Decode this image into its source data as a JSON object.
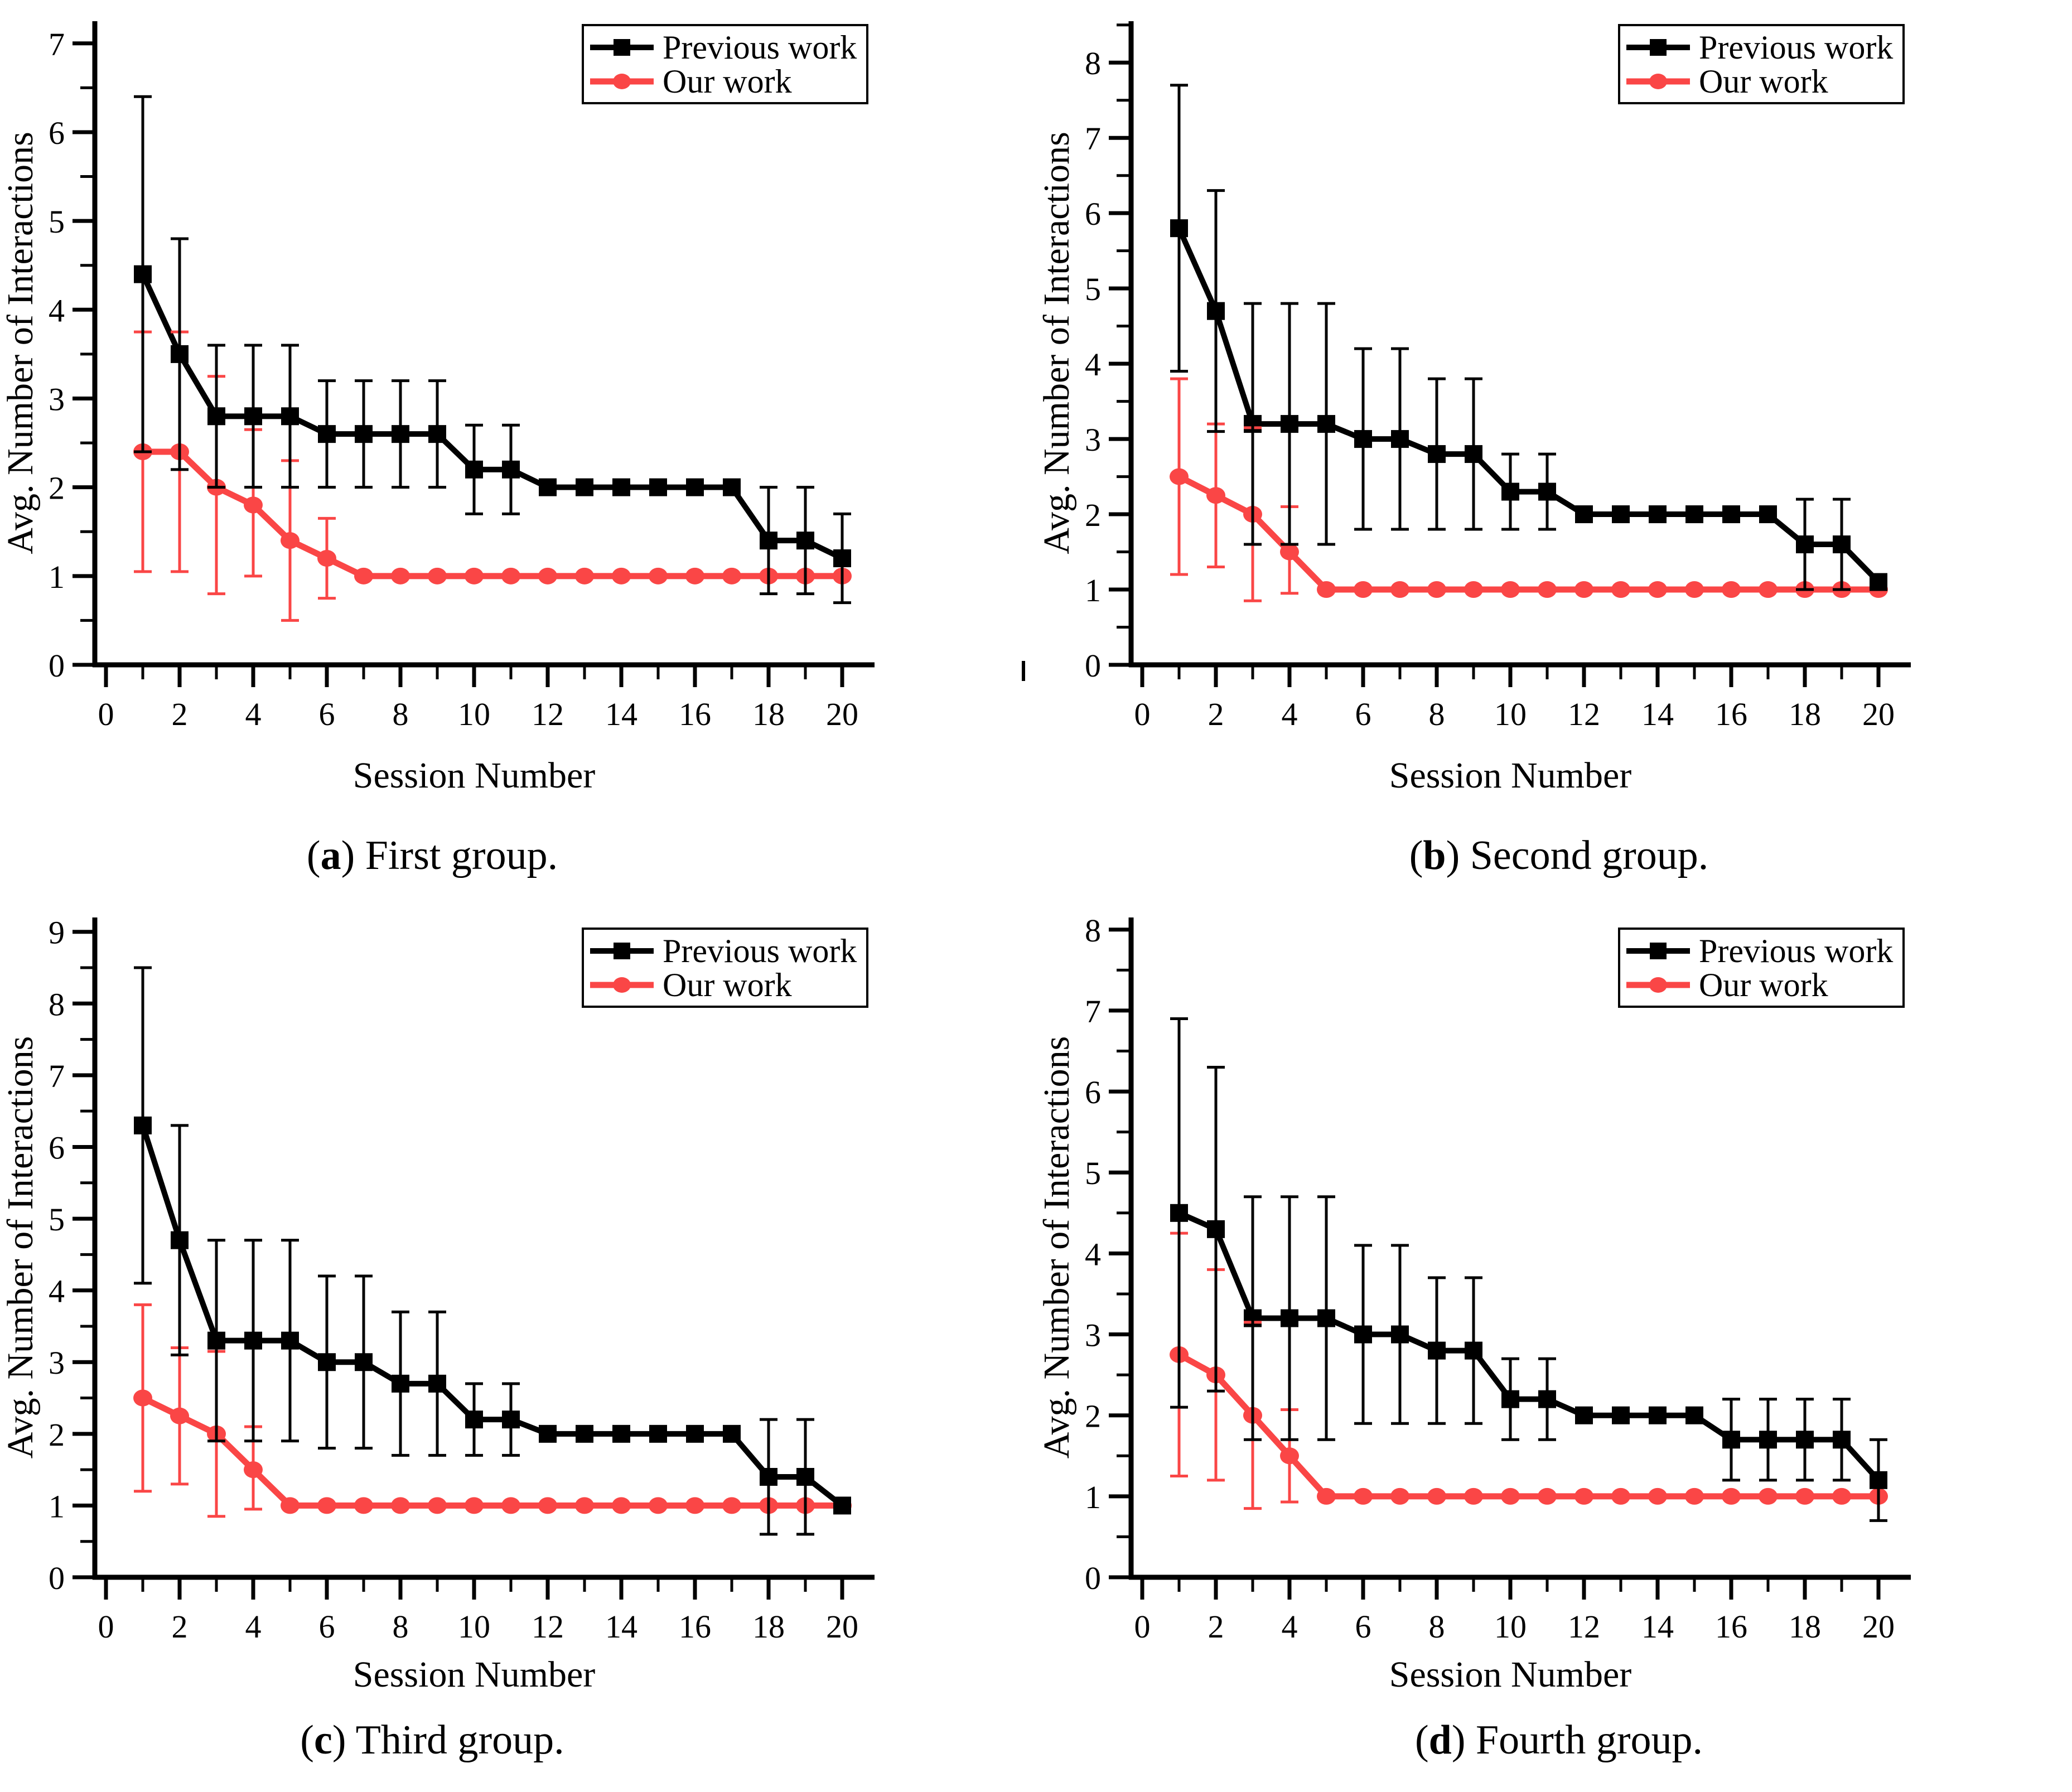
{
  "figure": {
    "background": "#ffffff",
    "text_color": "#000000",
    "accent_red": "#fa4646",
    "accent_black": "#000000"
  },
  "chart_data": [
    {
      "type": "line",
      "id": "a",
      "caption": {
        "open": "(",
        "letter": "a",
        "close": ")",
        "text": " First group."
      },
      "xlabel": "Session Number",
      "ylabel": "Avg. Number of Interactions",
      "x": [
        1,
        2,
        3,
        4,
        5,
        6,
        7,
        8,
        9,
        10,
        11,
        12,
        13,
        14,
        15,
        16,
        17,
        18,
        19,
        20
      ],
      "xticks": [
        0,
        2,
        4,
        6,
        8,
        10,
        12,
        14,
        16,
        18,
        20
      ],
      "yticks": [
        0,
        1,
        2,
        3,
        4,
        5,
        6,
        7
      ],
      "ymax_label": 7,
      "y_axis_top": 7.25,
      "xlim": [
        0,
        21
      ],
      "ylim": [
        0,
        7
      ],
      "grid": false,
      "legend_position": "top-right",
      "series": [
        {
          "name": "Previous work",
          "color": "#000000",
          "marker": "square",
          "values": [
            4.4,
            3.5,
            2.8,
            2.8,
            2.8,
            2.6,
            2.6,
            2.6,
            2.6,
            2.2,
            2.2,
            2,
            2,
            2,
            2,
            2,
            2,
            1.4,
            1.4,
            1.2
          ],
          "err_lo": [
            2.4,
            2.2,
            2.0,
            2.0,
            2.0,
            2.0,
            2.0,
            2.0,
            2.0,
            1.7,
            1.7,
            null,
            null,
            null,
            null,
            null,
            null,
            0.8,
            0.8,
            0.7
          ],
          "err_hi": [
            6.4,
            4.8,
            3.6,
            3.6,
            3.6,
            3.2,
            3.2,
            3.2,
            3.2,
            2.7,
            2.7,
            null,
            null,
            null,
            null,
            null,
            null,
            2.0,
            2.0,
            1.7
          ]
        },
        {
          "name": "Our work",
          "color": "#fa4646",
          "marker": "circle",
          "values": [
            2.4,
            2.4,
            2.0,
            1.8,
            1.4,
            1.2,
            1,
            1,
            1,
            1,
            1,
            1,
            1,
            1,
            1,
            1,
            1,
            1,
            1,
            1
          ],
          "err_lo": [
            1.05,
            1.05,
            0.8,
            1.0,
            0.5,
            0.75,
            null,
            null,
            null,
            null,
            null,
            null,
            null,
            null,
            null,
            null,
            null,
            null,
            null,
            null
          ],
          "err_hi": [
            3.75,
            3.75,
            3.25,
            2.65,
            2.3,
            1.65,
            null,
            null,
            null,
            null,
            null,
            null,
            null,
            null,
            null,
            null,
            null,
            null,
            null,
            null
          ]
        }
      ]
    },
    {
      "type": "line",
      "id": "b",
      "caption": {
        "open": "(",
        "letter": "b",
        "close": ")",
        "text": " Second group."
      },
      "xlabel": "Session Number",
      "ylabel": "Avg. Number of Interactions",
      "x": [
        1,
        2,
        3,
        4,
        5,
        6,
        7,
        8,
        9,
        10,
        11,
        12,
        13,
        14,
        15,
        16,
        17,
        18,
        19,
        20
      ],
      "xticks": [
        0,
        2,
        4,
        6,
        8,
        10,
        12,
        14,
        16,
        18,
        20
      ],
      "yticks": [
        0,
        1,
        2,
        3,
        4,
        5,
        6,
        7,
        8
      ],
      "ymax_label": 8,
      "y_axis_top": 8.55,
      "xlim": [
        0,
        21
      ],
      "ylim": [
        0,
        8
      ],
      "grid": false,
      "legend_position": "top-right",
      "series": [
        {
          "name": "Previous work",
          "color": "#000000",
          "marker": "square",
          "values": [
            5.8,
            4.7,
            3.2,
            3.2,
            3.2,
            3.0,
            3.0,
            2.8,
            2.8,
            2.3,
            2.3,
            2,
            2,
            2,
            2,
            2,
            2,
            1.6,
            1.6,
            1.1
          ],
          "err_lo": [
            3.9,
            3.1,
            1.6,
            1.6,
            1.6,
            1.8,
            1.8,
            1.8,
            1.8,
            1.8,
            1.8,
            null,
            null,
            null,
            null,
            null,
            null,
            1.0,
            1.0,
            null
          ],
          "err_hi": [
            7.7,
            6.3,
            4.8,
            4.8,
            4.8,
            4.2,
            4.2,
            3.8,
            3.8,
            2.8,
            2.8,
            null,
            null,
            null,
            null,
            null,
            null,
            2.2,
            2.2,
            null
          ]
        },
        {
          "name": "Our work",
          "color": "#fa4646",
          "marker": "circle",
          "values": [
            2.5,
            2.25,
            2.0,
            1.5,
            1,
            1,
            1,
            1,
            1,
            1,
            1,
            1,
            1,
            1,
            1,
            1,
            1,
            1,
            1,
            1
          ],
          "err_lo": [
            1.2,
            1.3,
            0.85,
            0.95,
            null,
            null,
            null,
            null,
            null,
            null,
            null,
            null,
            null,
            null,
            null,
            null,
            null,
            null,
            null,
            null
          ],
          "err_hi": [
            3.8,
            3.2,
            3.15,
            2.1,
            null,
            null,
            null,
            null,
            null,
            null,
            null,
            null,
            null,
            null,
            null,
            null,
            null,
            null,
            null,
            null
          ]
        }
      ]
    },
    {
      "type": "line",
      "id": "c",
      "caption": {
        "open": "(",
        "letter": "c",
        "close": ")",
        "text": " Third group."
      },
      "xlabel": "Session Number",
      "ylabel": "Avg. Number of Interactions",
      "x": [
        1,
        2,
        3,
        4,
        5,
        6,
        7,
        8,
        9,
        10,
        11,
        12,
        13,
        14,
        15,
        16,
        17,
        18,
        19,
        20
      ],
      "xticks": [
        0,
        2,
        4,
        6,
        8,
        10,
        12,
        14,
        16,
        18,
        20
      ],
      "yticks": [
        0,
        1,
        2,
        3,
        4,
        5,
        6,
        7,
        8,
        9
      ],
      "ymax_label": 9,
      "y_axis_top": 9.2,
      "xlim": [
        0,
        21
      ],
      "ylim": [
        0,
        9
      ],
      "grid": false,
      "legend_position": "top-right",
      "series": [
        {
          "name": "Previous work",
          "color": "#000000",
          "marker": "square",
          "values": [
            6.3,
            4.7,
            3.3,
            3.3,
            3.3,
            3.0,
            3.0,
            2.7,
            2.7,
            2.2,
            2.2,
            2,
            2,
            2,
            2,
            2,
            2,
            1.4,
            1.4,
            1.0
          ],
          "err_lo": [
            4.1,
            3.1,
            1.9,
            1.9,
            1.9,
            1.8,
            1.8,
            1.7,
            1.7,
            1.7,
            1.7,
            null,
            null,
            null,
            null,
            null,
            null,
            0.6,
            0.6,
            null
          ],
          "err_hi": [
            8.5,
            6.3,
            4.7,
            4.7,
            4.7,
            4.2,
            4.2,
            3.7,
            3.7,
            2.7,
            2.7,
            null,
            null,
            null,
            null,
            null,
            null,
            2.2,
            2.2,
            null
          ]
        },
        {
          "name": "Our work",
          "color": "#fa4646",
          "marker": "circle",
          "values": [
            2.5,
            2.25,
            2.0,
            1.5,
            1,
            1,
            1,
            1,
            1,
            1,
            1,
            1,
            1,
            1,
            1,
            1,
            1,
            1,
            1,
            1
          ],
          "err_lo": [
            1.2,
            1.3,
            0.85,
            0.95,
            null,
            null,
            null,
            null,
            null,
            null,
            null,
            null,
            null,
            null,
            null,
            null,
            null,
            null,
            null,
            null
          ],
          "err_hi": [
            3.8,
            3.2,
            3.15,
            2.1,
            null,
            null,
            null,
            null,
            null,
            null,
            null,
            null,
            null,
            null,
            null,
            null,
            null,
            null,
            null,
            null
          ]
        }
      ]
    },
    {
      "type": "line",
      "id": "d",
      "caption": {
        "open": "(",
        "letter": "d",
        "close": ")",
        "text": " Fourth group."
      },
      "xlabel": "Session Number",
      "ylabel": "Avg. Number of Interactions",
      "x": [
        1,
        2,
        3,
        4,
        5,
        6,
        7,
        8,
        9,
        10,
        11,
        12,
        13,
        14,
        15,
        16,
        17,
        18,
        19,
        20
      ],
      "xticks": [
        0,
        2,
        4,
        6,
        8,
        10,
        12,
        14,
        16,
        18,
        20
      ],
      "yticks": [
        0,
        1,
        2,
        3,
        4,
        5,
        6,
        7,
        8
      ],
      "ymax_label": 8,
      "y_axis_top": 8.15,
      "xlim": [
        0,
        21
      ],
      "ylim": [
        0,
        8
      ],
      "grid": false,
      "legend_position": "top-right",
      "series": [
        {
          "name": "Previous work",
          "color": "#000000",
          "marker": "square",
          "values": [
            4.5,
            4.3,
            3.2,
            3.2,
            3.2,
            3.0,
            3.0,
            2.8,
            2.8,
            2.2,
            2.2,
            2,
            2,
            2,
            2,
            1.7,
            1.7,
            1.7,
            1.7,
            1.2
          ],
          "err_lo": [
            2.1,
            2.3,
            1.7,
            1.7,
            1.7,
            1.9,
            1.9,
            1.9,
            1.9,
            1.7,
            1.7,
            null,
            null,
            null,
            null,
            1.2,
            1.2,
            1.2,
            1.2,
            0.7
          ],
          "err_hi": [
            6.9,
            6.3,
            4.7,
            4.7,
            4.7,
            4.1,
            4.1,
            3.7,
            3.7,
            2.7,
            2.7,
            null,
            null,
            null,
            null,
            2.2,
            2.2,
            2.2,
            2.2,
            1.7
          ]
        },
        {
          "name": "Our work",
          "color": "#fa4646",
          "marker": "circle",
          "values": [
            2.75,
            2.5,
            2.0,
            1.5,
            1,
            1,
            1,
            1,
            1,
            1,
            1,
            1,
            1,
            1,
            1,
            1,
            1,
            1,
            1,
            1
          ],
          "err_lo": [
            1.25,
            1.2,
            0.85,
            0.93,
            null,
            null,
            null,
            null,
            null,
            null,
            null,
            null,
            null,
            null,
            null,
            null,
            null,
            null,
            null,
            null
          ],
          "err_hi": [
            4.25,
            3.8,
            3.15,
            2.07,
            null,
            null,
            null,
            null,
            null,
            null,
            null,
            null,
            null,
            null,
            null,
            null,
            null,
            null,
            null,
            null
          ]
        }
      ]
    }
  ]
}
